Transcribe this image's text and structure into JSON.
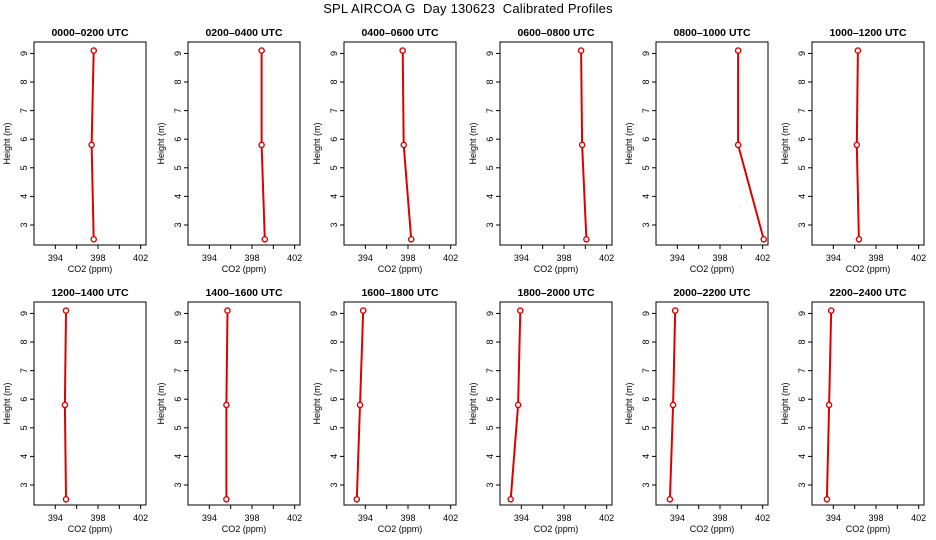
{
  "title": "SPL AIRCOA G  Day 130623  Calibrated Profiles",
  "style": {
    "line_color": "#dd0000",
    "axis_color": "#000000"
  },
  "chart_data": [
    {
      "type": "line",
      "title": "0000–0200 UTC",
      "xlabel": "CO2 (ppm)",
      "ylabel": "Height (m)",
      "xlim": [
        392,
        402.5
      ],
      "ylim": [
        2.3,
        9.4
      ],
      "xticks": [
        394,
        396,
        398,
        400,
        402
      ],
      "xtick_labels": [
        "394",
        "398",
        "402"
      ],
      "yticks": [
        3,
        4,
        5,
        6,
        7,
        8,
        9
      ],
      "series": [
        {
          "x": [
            397.6,
            397.4,
            397.6
          ],
          "y": [
            9.1,
            5.8,
            2.5
          ]
        }
      ]
    },
    {
      "type": "line",
      "title": "0200–0400 UTC",
      "xlabel": "CO2 (ppm)",
      "ylabel": "Height (m)",
      "xlim": [
        392,
        402.5
      ],
      "ylim": [
        2.3,
        9.4
      ],
      "xticks": [
        394,
        396,
        398,
        400,
        402
      ],
      "xtick_labels": [
        "394",
        "398",
        "402"
      ],
      "yticks": [
        3,
        4,
        5,
        6,
        7,
        8,
        9
      ],
      "series": [
        {
          "x": [
            398.9,
            398.9,
            399.2
          ],
          "y": [
            9.1,
            5.8,
            2.5
          ]
        }
      ]
    },
    {
      "type": "line",
      "title": "0400–0600 UTC",
      "xlabel": "CO2 (ppm)",
      "ylabel": "Height (m)",
      "xlim": [
        392,
        402.5
      ],
      "ylim": [
        2.3,
        9.4
      ],
      "xticks": [
        394,
        396,
        398,
        400,
        402
      ],
      "xtick_labels": [
        "394",
        "398",
        "402"
      ],
      "yticks": [
        3,
        4,
        5,
        6,
        7,
        8,
        9
      ],
      "series": [
        {
          "x": [
            397.5,
            397.6,
            398.3
          ],
          "y": [
            9.1,
            5.8,
            2.5
          ]
        }
      ]
    },
    {
      "type": "line",
      "title": "0600–0800 UTC",
      "xlabel": "CO2 (ppm)",
      "ylabel": "Height (m)",
      "xlim": [
        392,
        402.5
      ],
      "ylim": [
        2.3,
        9.4
      ],
      "xticks": [
        394,
        396,
        398,
        400,
        402
      ],
      "xtick_labels": [
        "394",
        "398",
        "402"
      ],
      "yticks": [
        3,
        4,
        5,
        6,
        7,
        8,
        9
      ],
      "series": [
        {
          "x": [
            399.6,
            399.7,
            400.1
          ],
          "y": [
            9.1,
            5.8,
            2.5
          ]
        }
      ]
    },
    {
      "type": "line",
      "title": "0800–1000 UTC",
      "xlabel": "CO2 (ppm)",
      "ylabel": "Height (m)",
      "xlim": [
        392,
        402.5
      ],
      "ylim": [
        2.3,
        9.4
      ],
      "xticks": [
        394,
        396,
        398,
        400,
        402
      ],
      "xtick_labels": [
        "394",
        "398",
        "402"
      ],
      "yticks": [
        3,
        4,
        5,
        6,
        7,
        8,
        9
      ],
      "series": [
        {
          "x": [
            399.7,
            399.7,
            402.1
          ],
          "y": [
            9.1,
            5.8,
            2.5
          ]
        }
      ]
    },
    {
      "type": "line",
      "title": "1000–1200 UTC",
      "xlabel": "CO2 (ppm)",
      "ylabel": "Height (m)",
      "xlim": [
        392,
        402.5
      ],
      "ylim": [
        2.3,
        9.4
      ],
      "xticks": [
        394,
        396,
        398,
        400,
        402
      ],
      "xtick_labels": [
        "394",
        "398",
        "402"
      ],
      "yticks": [
        3,
        4,
        5,
        6,
        7,
        8,
        9
      ],
      "series": [
        {
          "x": [
            396.3,
            396.2,
            396.4
          ],
          "y": [
            9.1,
            5.8,
            2.5
          ]
        }
      ]
    },
    {
      "type": "line",
      "title": "1200–1400 UTC",
      "xlabel": "CO2 (ppm)",
      "ylabel": "Height (m)",
      "xlim": [
        392,
        402.5
      ],
      "ylim": [
        2.3,
        9.4
      ],
      "xticks": [
        394,
        396,
        398,
        400,
        402
      ],
      "xtick_labels": [
        "394",
        "398",
        "402"
      ],
      "yticks": [
        3,
        4,
        5,
        6,
        7,
        8,
        9
      ],
      "series": [
        {
          "x": [
            395.0,
            394.9,
            395.0
          ],
          "y": [
            9.1,
            5.8,
            2.5
          ]
        }
      ]
    },
    {
      "type": "line",
      "title": "1400–1600 UTC",
      "xlabel": "CO2 (ppm)",
      "ylabel": "Height (m)",
      "xlim": [
        392,
        402.5
      ],
      "ylim": [
        2.3,
        9.4
      ],
      "xticks": [
        394,
        396,
        398,
        400,
        402
      ],
      "xtick_labels": [
        "394",
        "398",
        "402"
      ],
      "yticks": [
        3,
        4,
        5,
        6,
        7,
        8,
        9
      ],
      "series": [
        {
          "x": [
            395.7,
            395.6,
            395.6
          ],
          "y": [
            9.1,
            5.8,
            2.5
          ]
        }
      ]
    },
    {
      "type": "line",
      "title": "1600–1800 UTC",
      "xlabel": "CO2 (ppm)",
      "ylabel": "Height (m)",
      "xlim": [
        392,
        402.5
      ],
      "ylim": [
        2.3,
        9.4
      ],
      "xticks": [
        394,
        396,
        398,
        400,
        402
      ],
      "xtick_labels": [
        "394",
        "398",
        "402"
      ],
      "yticks": [
        3,
        4,
        5,
        6,
        7,
        8,
        9
      ],
      "series": [
        {
          "x": [
            393.8,
            393.5,
            393.2
          ],
          "y": [
            9.1,
            5.8,
            2.5
          ]
        }
      ]
    },
    {
      "type": "line",
      "title": "1800–2000 UTC",
      "xlabel": "CO2 (ppm)",
      "ylabel": "Height (m)",
      "xlim": [
        392,
        402.5
      ],
      "ylim": [
        2.3,
        9.4
      ],
      "xticks": [
        394,
        396,
        398,
        400,
        402
      ],
      "xtick_labels": [
        "394",
        "398",
        "402"
      ],
      "yticks": [
        3,
        4,
        5,
        6,
        7,
        8,
        9
      ],
      "series": [
        {
          "x": [
            393.9,
            393.7,
            393.0
          ],
          "y": [
            9.1,
            5.8,
            2.5
          ]
        }
      ]
    },
    {
      "type": "line",
      "title": "2000–2200 UTC",
      "xlabel": "CO2 (ppm)",
      "ylabel": "Height (m)",
      "xlim": [
        392,
        402.5
      ],
      "ylim": [
        2.3,
        9.4
      ],
      "xticks": [
        394,
        396,
        398,
        400,
        402
      ],
      "xtick_labels": [
        "394",
        "398",
        "402"
      ],
      "yticks": [
        3,
        4,
        5,
        6,
        7,
        8,
        9
      ],
      "series": [
        {
          "x": [
            393.8,
            393.6,
            393.3
          ],
          "y": [
            9.1,
            5.8,
            2.5
          ]
        }
      ]
    },
    {
      "type": "line",
      "title": "2200–2400 UTC",
      "xlabel": "CO2 (ppm)",
      "ylabel": "Height (m)",
      "xlim": [
        392,
        402.5
      ],
      "ylim": [
        2.3,
        9.4
      ],
      "xticks": [
        394,
        396,
        398,
        400,
        402
      ],
      "xtick_labels": [
        "394",
        "398",
        "402"
      ],
      "yticks": [
        3,
        4,
        5,
        6,
        7,
        8,
        9
      ],
      "series": [
        {
          "x": [
            393.8,
            393.6,
            393.4
          ],
          "y": [
            9.1,
            5.8,
            2.5
          ]
        }
      ]
    }
  ]
}
